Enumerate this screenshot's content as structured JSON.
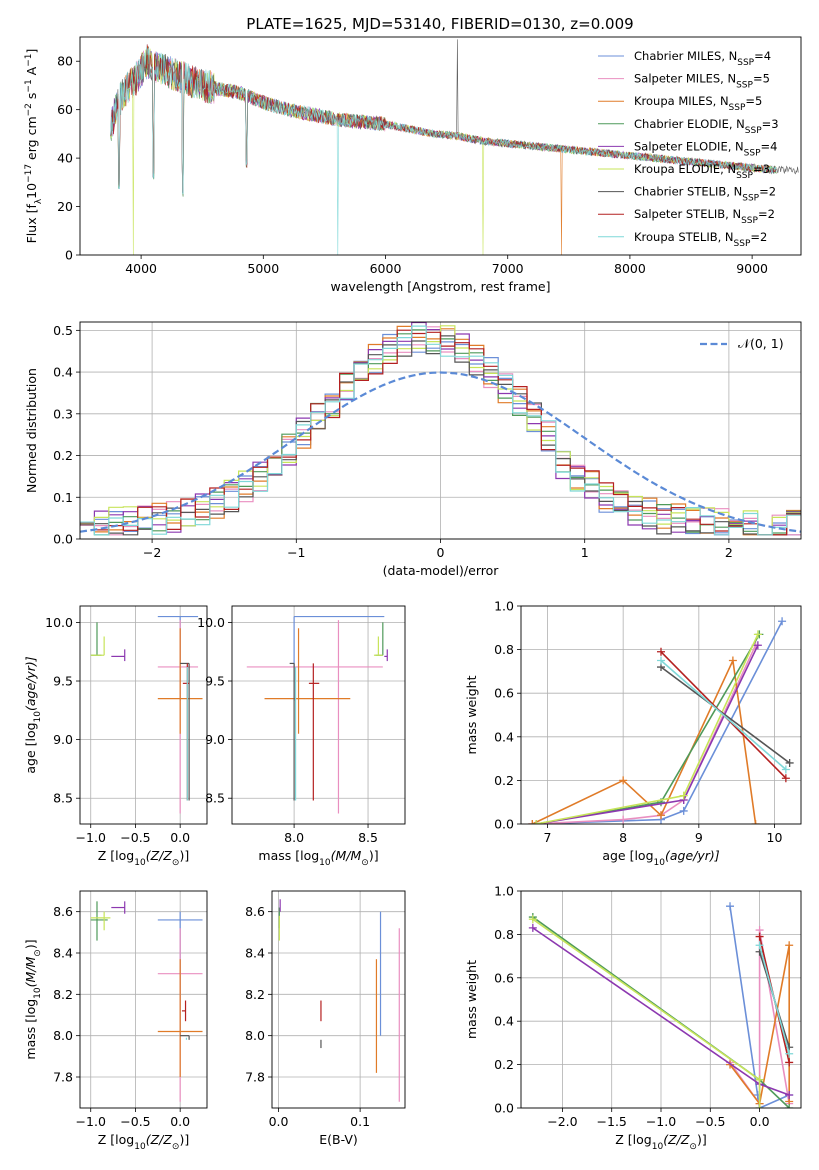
{
  "figure": {
    "title": "PLATE=1625, MJD=53140, FIBERID=0130, z=0.009"
  },
  "colors": {
    "Chabrier MILES": "#6b8fd8",
    "Salpeter MILES": "#e98fc0",
    "Kroupa MILES": "#e07b28",
    "Chabrier ELODIE": "#4f9a5a",
    "Salpeter ELODIE": "#8c38b0",
    "Kroupa ELODIE": "#c7e45a",
    "Chabrier STELIB": "#555555",
    "Salpeter STELIB": "#b42020",
    "Kroupa STELIB": "#7fd8d8",
    "normal": "#5b8ad6"
  },
  "legend_spectrum": [
    {
      "pre": "Chabrier MILES, N",
      "sub": "SSP",
      "post": "=4"
    },
    {
      "pre": "Salpeter MILES, N",
      "sub": "SSP",
      "post": "=5"
    },
    {
      "pre": "Kroupa MILES, N",
      "sub": "SSP",
      "post": "=5"
    },
    {
      "pre": "Chabrier ELODIE, N",
      "sub": "SSP",
      "post": "=3"
    },
    {
      "pre": "Salpeter ELODIE, N",
      "sub": "SSP",
      "post": "=4"
    },
    {
      "pre": "Kroupa ELODIE, N",
      "sub": "SSP",
      "post": "=3"
    },
    {
      "pre": "Chabrier STELIB, N",
      "sub": "SSP",
      "post": "=2"
    },
    {
      "pre": "Salpeter STELIB, N",
      "sub": "SSP",
      "post": "=2"
    },
    {
      "pre": "Kroupa STELIB, N",
      "sub": "SSP",
      "post": "=2"
    }
  ],
  "chart_data": [
    {
      "id": "spectrum",
      "type": "line",
      "title": "PLATE=1625, MJD=53140, FIBERID=0130, z=0.009",
      "xlabel": "wavelength [Angstrom, rest frame]",
      "ylabel_parts": [
        "Flux [f",
        "λ",
        "10",
        "−17",
        " erg cm",
        "−2",
        " s",
        "−1",
        " A",
        "−1",
        "]"
      ],
      "xlim": [
        3500,
        9400
      ],
      "ylim": [
        0,
        90
      ],
      "xticks": [
        4000,
        5000,
        6000,
        7000,
        8000,
        9000
      ],
      "yticks": [
        0,
        20,
        40,
        60,
        80
      ],
      "continuum": {
        "x": [
          3750,
          3800,
          3850,
          3900,
          3950,
          4000,
          4050,
          4100,
          4200,
          4300,
          4400,
          4500,
          4600,
          4700,
          4800,
          4900,
          5000,
          5200,
          5400,
          5600,
          5800,
          6000,
          6200,
          6400,
          6600,
          6800,
          7000,
          7200,
          7400,
          7600,
          7800,
          8000,
          8200,
          8400,
          8600,
          8800,
          9000,
          9200
        ],
        "y": [
          52,
          62,
          66,
          70,
          72,
          76,
          80,
          78,
          76,
          74,
          72,
          70,
          69,
          68,
          67,
          65,
          63,
          60,
          58,
          56,
          55,
          54,
          52,
          50,
          49,
          47,
          46,
          45,
          44,
          43,
          42,
          41,
          40,
          39,
          38,
          37,
          36,
          35
        ]
      },
      "dips": [
        {
          "x": 3934,
          "y": 0,
          "series": "Kroupa ELODIE"
        },
        {
          "x": 3820,
          "y": 27
        },
        {
          "x": 4102,
          "y": 31
        },
        {
          "x": 4340,
          "y": 24
        },
        {
          "x": 4861,
          "y": 36
        },
        {
          "x": 5610,
          "y": 0,
          "series": "Kroupa STELIB"
        },
        {
          "x": 6800,
          "y": 0,
          "series": "Kroupa ELODIE"
        },
        {
          "x": 7440,
          "y": 0,
          "series": "Kroupa MILES"
        }
      ],
      "spike": {
        "x": 6590,
        "y": 89,
        "series": "Chabrier STELIB"
      },
      "xmax_series": {
        "Chabrier STELIB": 9380
      }
    },
    {
      "id": "residuals",
      "type": "line",
      "xlabel": "(data-model)/error",
      "ylabel": "Normed distribution",
      "xlim": [
        -2.5,
        2.5
      ],
      "ylim": [
        0,
        0.52
      ],
      "xticks": [
        -2,
        -1,
        0,
        1,
        2
      ],
      "yticks": [
        0.0,
        0.1,
        0.2,
        0.3,
        0.4,
        0.5
      ],
      "legend": "𝒩(0, 1)",
      "bins": {
        "start": -2.5,
        "width": 0.1
      },
      "normal": {
        "mean": 0,
        "sigma": 1
      }
    },
    {
      "id": "age-vs-Z",
      "type": "scatter",
      "xlabel_parts": [
        "Z [log",
        "10",
        "(Z/Z",
        "⊙",
        ")]"
      ],
      "ylabel_parts": [
        "age  [log",
        "10",
        "(age/yr)]"
      ],
      "xlim": [
        -1.12,
        0.3
      ],
      "ylim": [
        8.28,
        10.14
      ],
      "xticks": [
        -1.0,
        -0.5,
        0.0
      ],
      "yticks": [
        8.5,
        9.0,
        9.5,
        10.0
      ],
      "points": [
        {
          "series": "Chabrier MILES",
          "x": 0.0,
          "y": 10.05,
          "xerr": [
            0.25,
            0.2
          ],
          "yerr": [
            0.72,
            0.0
          ]
        },
        {
          "series": "Salpeter MILES",
          "x": 0.0,
          "y": 9.62,
          "xerr": [
            0.25,
            0.2
          ],
          "yerr": [
            1.25,
            0.4
          ]
        },
        {
          "series": "Kroupa MILES",
          "x": 0.0,
          "y": 9.35,
          "xerr": [
            0.25,
            0.25
          ],
          "yerr": [
            0.3,
            0.6
          ]
        },
        {
          "series": "Chabrier ELODIE",
          "x": -0.93,
          "y": 9.72,
          "xerr": [
            0.07,
            0.05
          ],
          "yerr": [
            0.0,
            0.28
          ]
        },
        {
          "series": "Salpeter ELODIE",
          "x": -0.62,
          "y": 9.71,
          "xerr": [
            0.15,
            0.0
          ],
          "yerr": [
            0.04,
            0.06
          ]
        },
        {
          "series": "Kroupa ELODIE",
          "x": -0.85,
          "y": 9.72,
          "xerr": [
            0.15,
            0.0
          ],
          "yerr": [
            0.0,
            0.16
          ]
        },
        {
          "series": "Chabrier STELIB",
          "x": 0.1,
          "y": 9.65,
          "xerr": [
            0.1,
            0.0
          ],
          "yerr": [
            1.17,
            0.0
          ]
        },
        {
          "series": "Salpeter STELIB",
          "x": 0.08,
          "y": 9.48,
          "xerr": [
            0.05,
            0.02
          ],
          "yerr": [
            1.0,
            0.17
          ]
        },
        {
          "series": "Kroupa STELIB",
          "x": 0.08,
          "y": 9.62,
          "xerr": [
            0.0,
            0.0
          ],
          "yerr": [
            1.14,
            0.0
          ]
        }
      ]
    },
    {
      "id": "age-vs-mass",
      "type": "scatter",
      "xlabel_parts": [
        "mass [log",
        "10",
        "(M/M",
        "⊙",
        ")]"
      ],
      "ylabel": "",
      "xlim": [
        7.58,
        8.75
      ],
      "ylim": [
        8.28,
        10.14
      ],
      "xticks": [
        8.0,
        8.5
      ],
      "yticks": [
        8.5,
        9.0,
        9.5,
        10.0
      ],
      "points": [
        {
          "series": "Chabrier MILES",
          "x": 8.0,
          "y": 10.05,
          "xerr": [
            0.0,
            0.61
          ],
          "yerr": [
            0.72,
            0.0
          ]
        },
        {
          "series": "Salpeter MILES",
          "x": 8.3,
          "y": 9.62,
          "xerr": [
            0.62,
            0.3
          ],
          "yerr": [
            1.25,
            0.4
          ]
        },
        {
          "series": "Kroupa MILES",
          "x": 8.03,
          "y": 9.35,
          "xerr": [
            0.23,
            0.35
          ],
          "yerr": [
            0.3,
            0.6
          ]
        },
        {
          "series": "Chabrier ELODIE",
          "x": 8.6,
          "y": 9.72,
          "xerr": [
            0.05,
            0.0
          ],
          "yerr": [
            0.0,
            0.28
          ]
        },
        {
          "series": "Salpeter ELODIE",
          "x": 8.63,
          "y": 9.71,
          "xerr": [
            0.02,
            0.0
          ],
          "yerr": [
            0.04,
            0.06
          ]
        },
        {
          "series": "Kroupa ELODIE",
          "x": 8.57,
          "y": 9.72,
          "xerr": [
            0.03,
            0.03
          ],
          "yerr": [
            0.0,
            0.16
          ]
        },
        {
          "series": "Chabrier STELIB",
          "x": 8.0,
          "y": 9.65,
          "xerr": [
            0.03,
            0.0
          ],
          "yerr": [
            1.17,
            0.0
          ]
        },
        {
          "series": "Salpeter STELIB",
          "x": 8.13,
          "y": 9.48,
          "xerr": [
            0.03,
            0.04
          ],
          "yerr": [
            1.0,
            0.17
          ]
        },
        {
          "series": "Kroupa STELIB",
          "x": 8.01,
          "y": 9.62,
          "xerr": [
            0.0,
            0.0
          ],
          "yerr": [
            1.14,
            0.0
          ]
        }
      ]
    },
    {
      "id": "weight-vs-age",
      "type": "line",
      "xlabel_parts": [
        "age  [log",
        "10",
        "(age/yr)]"
      ],
      "ylabel": "mass weight",
      "xlim": [
        6.65,
        10.35
      ],
      "ylim": [
        0,
        1.0
      ],
      "xticks": [
        7,
        8,
        9,
        10
      ],
      "yticks": [
        0.0,
        0.2,
        0.4,
        0.6,
        0.8,
        1.0
      ],
      "series": [
        {
          "name": "Chabrier MILES",
          "x": [
            6.8,
            8.5,
            8.8,
            10.1
          ],
          "y": [
            0.0,
            0.02,
            0.06,
            0.93
          ]
        },
        {
          "name": "Salpeter MILES",
          "x": [
            6.8,
            8.0,
            8.5,
            8.8,
            9.75
          ],
          "y": [
            0.0,
            0.02,
            0.04,
            0.11,
            0.82
          ]
        },
        {
          "name": "Kroupa MILES",
          "x": [
            6.8,
            8.0,
            8.5,
            9.45,
            9.75
          ],
          "y": [
            0.0,
            0.2,
            0.04,
            0.75,
            0.0
          ]
        },
        {
          "name": "Chabrier ELODIE",
          "x": [
            6.85,
            8.5,
            9.8
          ],
          "y": [
            0.0,
            0.1,
            0.87
          ]
        },
        {
          "name": "Salpeter ELODIE",
          "x": [
            6.85,
            8.8,
            9.78
          ],
          "y": [
            0.0,
            0.11,
            0.82
          ]
        },
        {
          "name": "Kroupa ELODIE",
          "x": [
            6.85,
            8.8,
            9.78
          ],
          "y": [
            0.0,
            0.13,
            0.87
          ]
        },
        {
          "name": "Chabrier STELIB",
          "x": [
            8.5,
            10.2
          ],
          "y": [
            0.72,
            0.28
          ]
        },
        {
          "name": "Salpeter STELIB",
          "x": [
            8.5,
            10.15
          ],
          "y": [
            0.79,
            0.21
          ]
        },
        {
          "name": "Kroupa STELIB",
          "x": [
            8.5,
            10.15
          ],
          "y": [
            0.75,
            0.25
          ]
        }
      ]
    },
    {
      "id": "mass-vs-Z",
      "type": "scatter",
      "xlabel_parts": [
        "Z [log",
        "10",
        "(Z/Z",
        "⊙",
        ")]"
      ],
      "ylabel_parts": [
        "mass [log",
        "10",
        "(M/M",
        "⊙",
        ")]"
      ],
      "xlim": [
        -1.12,
        0.3
      ],
      "ylim": [
        7.65,
        8.7
      ],
      "xticks": [
        -1.0,
        -0.5,
        0.0
      ],
      "yticks": [
        7.8,
        8.0,
        8.2,
        8.4,
        8.6
      ],
      "points": [
        {
          "series": "Chabrier MILES",
          "x": 0.0,
          "y": 8.56,
          "xerr": [
            0.25,
            0.25
          ],
          "yerr": [
            0.56,
            0.04
          ]
        },
        {
          "series": "Salpeter MILES",
          "x": 0.0,
          "y": 8.3,
          "xerr": [
            0.25,
            0.25
          ],
          "yerr": [
            0.62,
            0.22
          ]
        },
        {
          "series": "Kroupa MILES",
          "x": 0.0,
          "y": 8.02,
          "xerr": [
            0.25,
            0.25
          ],
          "yerr": [
            0.22,
            0.35
          ]
        },
        {
          "series": "Chabrier ELODIE",
          "x": -0.93,
          "y": 8.56,
          "xerr": [
            0.07,
            0.12
          ],
          "yerr": [
            0.1,
            0.09
          ]
        },
        {
          "series": "Salpeter ELODIE",
          "x": -0.62,
          "y": 8.62,
          "xerr": [
            0.15,
            0.0
          ],
          "yerr": [
            0.03,
            0.03
          ]
        },
        {
          "series": "Kroupa ELODIE",
          "x": -0.85,
          "y": 8.57,
          "xerr": [
            0.15,
            0.07
          ],
          "yerr": [
            0.06,
            0.03
          ]
        },
        {
          "series": "Chabrier STELIB",
          "x": 0.1,
          "y": 8.0,
          "xerr": [
            0.1,
            0.0
          ],
          "yerr": [
            0.02,
            0.0
          ]
        },
        {
          "series": "Salpeter STELIB",
          "x": 0.06,
          "y": 8.12,
          "xerr": [
            0.04,
            0.0
          ],
          "yerr": [
            0.05,
            0.05
          ]
        },
        {
          "series": "Kroupa STELIB",
          "x": 0.07,
          "y": 7.99,
          "xerr": [
            0.0,
            0.0
          ],
          "yerr": [
            0.01,
            0.0
          ]
        }
      ]
    },
    {
      "id": "mass-vs-EBV",
      "type": "scatter",
      "xlabel": "E(B-V)",
      "ylabel": "",
      "xlim": [
        -0.008,
        0.155
      ],
      "ylim": [
        7.65,
        8.7
      ],
      "xticks": [
        0.0,
        0.1
      ],
      "yticks": [
        7.8,
        8.0,
        8.2,
        8.4,
        8.6
      ],
      "points": [
        {
          "series": "Chabrier MILES",
          "x": 0.125,
          "y": 8.0,
          "yerr": [
            0.0,
            0.6
          ]
        },
        {
          "series": "Salpeter MILES",
          "x": 0.148,
          "y": 8.3,
          "yerr": [
            0.62,
            0.22
          ]
        },
        {
          "series": "Kroupa MILES",
          "x": 0.12,
          "y": 8.02,
          "yerr": [
            0.2,
            0.35
          ]
        },
        {
          "series": "Chabrier ELODIE",
          "x": 0.001,
          "y": 8.56,
          "yerr": [
            0.04,
            0.06
          ]
        },
        {
          "series": "Salpeter ELODIE",
          "x": 0.002,
          "y": 8.62,
          "yerr": [
            0.02,
            0.04
          ]
        },
        {
          "series": "Kroupa ELODIE",
          "x": 0.001,
          "y": 8.52,
          "yerr": [
            0.06,
            0.06
          ]
        },
        {
          "series": "Chabrier STELIB",
          "x": 0.052,
          "y": 7.96,
          "yerr": [
            0.02,
            0.02
          ]
        },
        {
          "series": "Salpeter STELIB",
          "x": 0.052,
          "y": 8.12,
          "yerr": [
            0.05,
            0.05
          ]
        },
        {
          "series": "Kroupa STELIB",
          "x": 0.052,
          "y": 7.98,
          "yerr": [
            0.0,
            0.0
          ]
        }
      ]
    },
    {
      "id": "weight-vs-Z",
      "type": "line",
      "xlabel_parts": [
        "Z [log",
        "10",
        "(Z/Z",
        "⊙",
        ")]"
      ],
      "ylabel": "mass weight",
      "xlim": [
        -2.42,
        0.42
      ],
      "ylim": [
        0,
        1.0
      ],
      "xticks": [
        -2.0,
        -1.5,
        -1.0,
        -0.5,
        0.0
      ],
      "yticks": [
        0.0,
        0.2,
        0.4,
        0.6,
        0.8,
        1.0
      ],
      "series": [
        {
          "name": "Chabrier MILES",
          "x": [
            -0.3,
            -0.02,
            0.0,
            0.3
          ],
          "y": [
            0.93,
            0.06,
            0.0,
            0.06
          ]
        },
        {
          "name": "Salpeter MILES",
          "x": [
            -0.3,
            0.0,
            0.0,
            0.3
          ],
          "y": [
            0.21,
            0.02,
            0.82,
            0.02
          ]
        },
        {
          "name": "Kroupa MILES",
          "x": [
            -0.3,
            0.0,
            0.3,
            0.3
          ],
          "y": [
            0.2,
            0.02,
            0.75,
            0.03
          ]
        },
        {
          "name": "Chabrier ELODIE",
          "x": [
            -2.3,
            0.0,
            0.3
          ],
          "y": [
            0.88,
            0.13,
            0.0
          ]
        },
        {
          "name": "Salpeter ELODIE",
          "x": [
            -2.3,
            0.0,
            0.3
          ],
          "y": [
            0.83,
            0.11,
            0.06
          ]
        },
        {
          "name": "Kroupa ELODIE",
          "x": [
            -2.3,
            0.0,
            0.0
          ],
          "y": [
            0.87,
            0.13,
            0.0
          ]
        },
        {
          "name": "Chabrier STELIB",
          "x": [
            0.0,
            0.3
          ],
          "y": [
            0.72,
            0.28
          ]
        },
        {
          "name": "Salpeter STELIB",
          "x": [
            0.0,
            0.3
          ],
          "y": [
            0.79,
            0.21
          ]
        },
        {
          "name": "Kroupa STELIB",
          "x": [
            0.0,
            0.3
          ],
          "y": [
            0.75,
            0.25
          ]
        }
      ]
    }
  ]
}
